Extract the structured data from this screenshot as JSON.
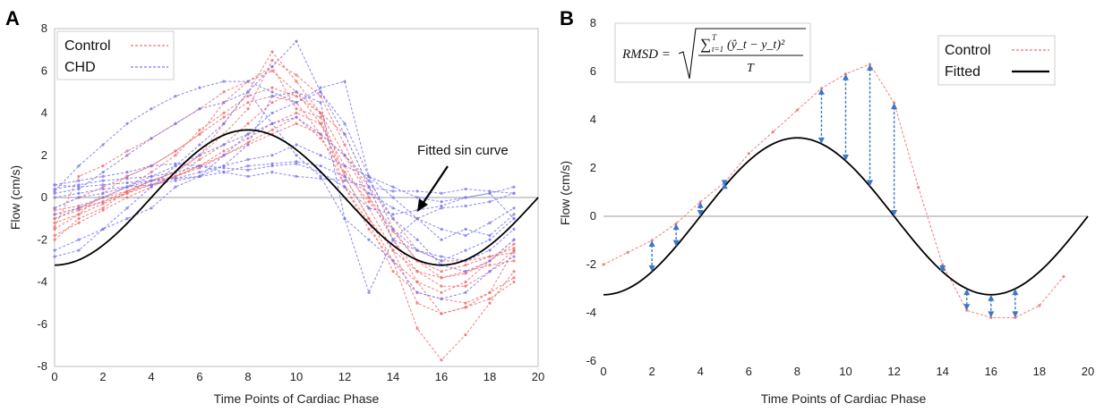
{
  "chart_data": [
    {
      "panel": "A",
      "type": "line",
      "xlabel": "Time Points of Cardiac Phase",
      "ylabel": "Flow (cm/s)",
      "xlim": [
        0,
        20
      ],
      "ylim": [
        -8,
        8
      ],
      "xticks": [
        0,
        2,
        4,
        6,
        8,
        10,
        12,
        14,
        16,
        18,
        20
      ],
      "yticks": [
        -8,
        -6,
        -4,
        -2,
        0,
        2,
        4,
        6,
        8
      ],
      "grid": false,
      "legend_position": "top-left",
      "legend": [
        {
          "label": "Control",
          "color": "#f07070"
        },
        {
          "label": "CHD",
          "color": "#7a7af0"
        }
      ],
      "annotation": "Fitted sin curve",
      "fitted_curve": {
        "amplitude": 3.2,
        "offset": 0,
        "phase_zero_x": 4,
        "period": 16,
        "x_end": 20
      },
      "x": [
        0,
        1,
        2,
        3,
        4,
        5,
        6,
        7,
        8,
        9,
        10,
        11,
        12,
        13,
        14,
        15,
        16,
        17,
        18,
        19
      ],
      "series": [
        {
          "group": "Control",
          "values": [
            -2.0,
            -1.0,
            -0.5,
            0.3,
            0.8,
            1.2,
            2.0,
            3.5,
            5.0,
            6.9,
            5.5,
            4.0,
            1.0,
            -1.0,
            -3.0,
            -6.2,
            -7.7,
            -6.5,
            -5.0,
            -3.5
          ]
        },
        {
          "group": "Control",
          "values": [
            -1.5,
            -0.8,
            0.2,
            1.0,
            1.5,
            2.2,
            3.0,
            4.5,
            5.5,
            6.0,
            5.0,
            3.5,
            1.5,
            -0.5,
            -2.5,
            -5.0,
            -5.5,
            -5.2,
            -4.5,
            -2.5
          ]
        },
        {
          "group": "Control",
          "values": [
            -1.0,
            -0.5,
            0.0,
            0.5,
            1.2,
            2.0,
            3.2,
            4.0,
            4.8,
            5.2,
            4.8,
            4.0,
            2.0,
            0.0,
            -2.0,
            -3.5,
            -4.2,
            -4.2,
            -3.5,
            -2.5
          ]
        },
        {
          "group": "Control",
          "values": [
            -0.5,
            0.0,
            0.5,
            1.0,
            1.5,
            2.2,
            3.0,
            3.8,
            4.5,
            4.8,
            4.5,
            3.0,
            0.5,
            -1.5,
            -3.0,
            -4.0,
            -4.5,
            -4.0,
            -3.0,
            -2.0
          ]
        },
        {
          "group": "Control",
          "values": [
            -1.2,
            -0.8,
            -0.3,
            0.2,
            0.8,
            1.0,
            1.5,
            2.2,
            2.8,
            3.5,
            4.0,
            3.5,
            1.0,
            -1.0,
            -2.5,
            -3.5,
            -3.8,
            -3.5,
            -3.2,
            -3.0
          ]
        },
        {
          "group": "Control",
          "values": [
            -0.8,
            -0.5,
            -0.2,
            0.3,
            0.8,
            1.2,
            2.0,
            3.0,
            4.2,
            6.5,
            5.8,
            4.8,
            2.5,
            0.0,
            -1.5,
            -3.0,
            -3.8,
            -3.6,
            -3.0,
            -2.2
          ]
        },
        {
          "group": "Control",
          "values": [
            -1.8,
            -1.2,
            -0.6,
            0.0,
            0.5,
            1.0,
            1.8,
            2.5,
            3.5,
            4.5,
            5.0,
            4.0,
            3.0,
            0.5,
            -2.0,
            -4.0,
            -5.5,
            -5.2,
            -4.8,
            -4.0
          ]
        },
        {
          "group": "Control",
          "values": [
            -1.0,
            -0.6,
            -0.2,
            0.2,
            0.6,
            1.0,
            1.5,
            2.0,
            2.5,
            3.0,
            3.5,
            3.0,
            2.0,
            0.5,
            -1.0,
            -2.5,
            -3.0,
            -3.0,
            -2.8,
            -2.4
          ]
        },
        {
          "group": "Control",
          "values": [
            -1.4,
            1.0,
            1.5,
            2.2,
            2.8,
            3.5,
            4.2,
            5.0,
            5.5,
            6.2,
            4.2,
            3.8,
            0.5,
            -1.2,
            -3.5,
            -4.5,
            -4.8,
            -5.0,
            -4.5,
            -3.8
          ]
        },
        {
          "group": "Control",
          "values": [
            -0.6,
            -0.4,
            0.0,
            0.3,
            0.6,
            1.0,
            1.4,
            2.0,
            2.6,
            3.2,
            3.8,
            2.8,
            1.2,
            -0.2,
            -1.6,
            -3.0,
            -3.5,
            -3.2,
            -2.8,
            -2.6
          ]
        },
        {
          "group": "CHD",
          "values": [
            -2.8,
            -2.5,
            -1.5,
            -0.5,
            0.5,
            1.5,
            2.5,
            3.5,
            5.0,
            6.2,
            7.4,
            5.0,
            3.0,
            0.5,
            -2.0,
            -2.5,
            -3.0,
            -2.5,
            -2.0,
            -1.0
          ]
        },
        {
          "group": "CHD",
          "values": [
            0.3,
            1.5,
            2.5,
            3.5,
            4.2,
            4.8,
            5.2,
            5.5,
            5.5,
            5.0,
            4.5,
            5.2,
            5.5,
            1.0,
            -1.5,
            -2.5,
            -2.8,
            -3.0,
            -2.5,
            -1.5
          ]
        },
        {
          "group": "CHD",
          "values": [
            0.6,
            0.8,
            1.0,
            1.2,
            1.5,
            1.6,
            1.5,
            1.2,
            1.0,
            1.2,
            1.0,
            0.9,
            0.8,
            0.5,
            0.3,
            0.3,
            0.2,
            0.4,
            0.3,
            0.2
          ]
        },
        {
          "group": "CHD",
          "values": [
            0.4,
            0.6,
            0.8,
            0.9,
            1.0,
            1.2,
            1.5,
            1.4,
            1.3,
            1.5,
            1.6,
            1.2,
            0.5,
            -0.5,
            -0.8,
            -0.6,
            -0.4,
            0.0,
            0.2,
            -1.0
          ]
        },
        {
          "group": "CHD",
          "values": [
            -0.5,
            0.0,
            0.2,
            0.5,
            0.8,
            0.9,
            1.0,
            1.5,
            2.5,
            4.8,
            5.0,
            4.5,
            -1.0,
            -4.5,
            -2.0,
            -1.0,
            -2.0,
            -1.5,
            -1.8,
            -0.8
          ]
        },
        {
          "group": "CHD",
          "values": [
            -2.5,
            -2.0,
            -1.5,
            -1.0,
            -0.5,
            0.5,
            1.0,
            2.0,
            3.0,
            4.0,
            4.5,
            5.0,
            3.5,
            1.0,
            0.0,
            -1.0,
            -1.5,
            -1.8,
            -1.2,
            -0.5
          ]
        },
        {
          "group": "CHD",
          "values": [
            0.0,
            0.2,
            0.4,
            0.5,
            0.6,
            0.8,
            1.0,
            1.2,
            1.5,
            1.6,
            1.7,
            1.5,
            1.0,
            0.2,
            -0.5,
            -1.0,
            -0.5,
            -0.4,
            -0.2,
            0.2
          ]
        },
        {
          "group": "CHD",
          "values": [
            0.2,
            0.4,
            1.2,
            2.0,
            2.8,
            3.5,
            4.2,
            4.5,
            5.0,
            3.5,
            2.0,
            1.0,
            -1.0,
            -2.0,
            -3.0,
            -4.5,
            -4.8,
            -4.5,
            -3.5,
            -2.8
          ]
        },
        {
          "group": "CHD",
          "values": [
            -0.8,
            -0.5,
            0.0,
            0.5,
            1.0,
            1.5,
            2.0,
            2.5,
            3.0,
            3.5,
            3.8,
            3.0,
            2.0,
            0.8,
            -1.0,
            -2.0,
            -3.2,
            -3.5,
            -3.0,
            -2.0
          ]
        },
        {
          "group": "CHD",
          "values": [
            0.6,
            0.5,
            0.6,
            0.7,
            0.8,
            0.9,
            1.2,
            1.5,
            1.8,
            2.0,
            2.5,
            2.0,
            1.5,
            1.0,
            0.5,
            0.0,
            -0.2,
            0.0,
            0.2,
            0.5
          ]
        }
      ]
    },
    {
      "panel": "B",
      "type": "line",
      "xlabel": "Time Points of Cardiac Phase",
      "ylabel": "Flow (cm/s)",
      "xlim": [
        0,
        20
      ],
      "ylim": [
        -6,
        8
      ],
      "xticks": [
        0,
        2,
        4,
        6,
        8,
        10,
        12,
        14,
        16,
        18,
        20
      ],
      "yticks": [
        -6,
        -4,
        -2,
        0,
        2,
        4,
        6,
        8
      ],
      "grid": false,
      "legend_position": "top-right",
      "legend": [
        {
          "label": "Control",
          "color": "#f07070"
        },
        {
          "label": "Fitted",
          "color": "#000000"
        }
      ],
      "formula": {
        "lhs": "RMSD =",
        "numerator": "∑",
        "sum_limits": "T",
        "sum_index": "t=1",
        "term": "(ŷ_t − y_t)²",
        "denominator": "T"
      },
      "fitted_curve": {
        "amplitude": 3.25,
        "offset": 0,
        "phase_zero_x": 4,
        "period": 16,
        "x_end": 20
      },
      "series": [
        {
          "group": "Control",
          "x": [
            0,
            1,
            2,
            3,
            4,
            5,
            6,
            7,
            8,
            9,
            10,
            11,
            12,
            13,
            14,
            15,
            16,
            17,
            18,
            19
          ],
          "values": [
            -2.0,
            -1.5,
            -1.0,
            -0.3,
            0.6,
            1.4,
            2.6,
            3.5,
            4.4,
            5.3,
            5.9,
            6.3,
            4.7,
            1.2,
            -2.0,
            -3.9,
            -4.2,
            -4.2,
            -3.7,
            -2.5
          ]
        }
      ],
      "residual_markers": [
        2,
        3,
        4,
        5,
        9,
        10,
        11,
        12,
        14,
        15,
        16,
        17
      ]
    }
  ],
  "colors": {
    "control": "#f07070",
    "chd": "#7a7af0",
    "fitted": "#000000",
    "arrow": "#3a78c8",
    "zero_line": "#bdbdbd"
  }
}
